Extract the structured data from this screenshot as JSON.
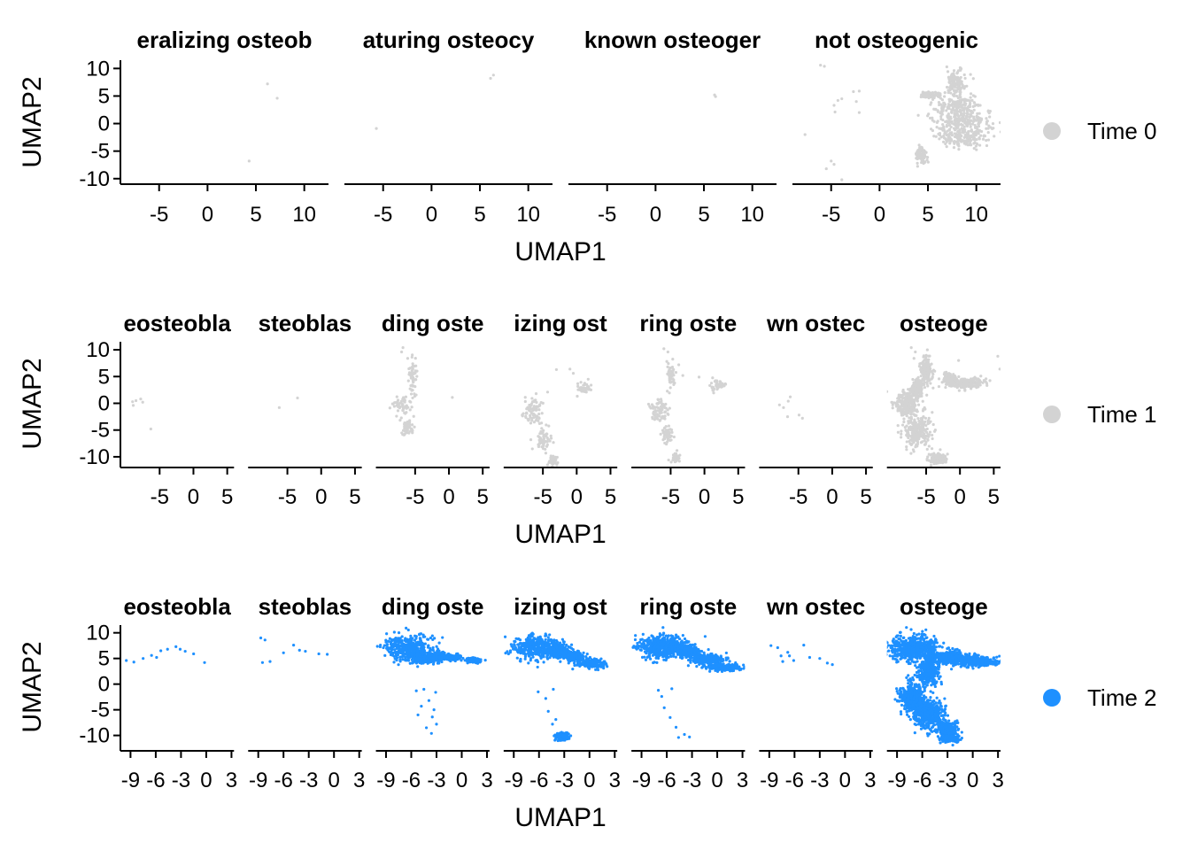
{
  "chart_data": [
    {
      "type": "scatter",
      "xlabel": "UMAP1",
      "ylabel": "UMAP2",
      "legend": {
        "label": "Time 0",
        "color": "#d3d3d3",
        "position": "right"
      },
      "xlim": [
        -9,
        12.5
      ],
      "ylim": [
        -11,
        11.5
      ],
      "xticks": [
        "-5",
        "0",
        "5",
        "10"
      ],
      "xtick_values": [
        -5,
        0,
        5,
        10
      ],
      "yticks": [
        "10",
        "5",
        "0",
        "-5",
        "-10"
      ],
      "ytick_values": [
        10,
        5,
        0,
        -5,
        -10
      ],
      "panels": [
        {
          "title": "eralizing osteob",
          "points": [
            [
              6.2,
              7.2
            ],
            [
              7.2,
              4.6
            ],
            [
              4.3,
              -6.8
            ]
          ]
        },
        {
          "title": "aturing osteocy",
          "points": [
            [
              -5.7,
              -0.9
            ],
            [
              6.1,
              8.2
            ],
            [
              6.4,
              8.8
            ]
          ]
        },
        {
          "title": "known osteoger",
          "points": [
            [
              6.1,
              5.2
            ],
            [
              6.2,
              4.9
            ]
          ]
        },
        {
          "title": "not osteogenic",
          "points": [
            [
              -6.1,
              10.6
            ],
            [
              -5.7,
              10.4
            ],
            [
              -7.7,
              -2.0
            ],
            [
              -2.7,
              5.8
            ],
            [
              -2.1,
              5.9
            ],
            [
              -2.4,
              4.0
            ],
            [
              -3.9,
              4.5
            ],
            [
              -4.7,
              3.3
            ],
            [
              -4.6,
              2.1
            ],
            [
              -4.3,
              4.2
            ],
            [
              -2.1,
              2.0
            ],
            [
              -4.7,
              -7.4
            ],
            [
              -5.0,
              -6.8
            ],
            [
              -5.5,
              -8.2
            ],
            [
              -3.9,
              -10.2
            ],
            [
              4.6,
              5.2
            ],
            [
              5.5,
              4.8
            ],
            [
              4.2,
              -5.5
            ],
            [
              4.0,
              1.5
            ]
          ]
        }
      ],
      "clusters": {
        "panel": 3,
        "blobs": [
          [
            7.9,
            7.5,
            1.0,
            2.4
          ],
          [
            8.0,
            3.2,
            2.0,
            1.6
          ],
          [
            8.6,
            0.2,
            2.9,
            2.6
          ],
          [
            8.6,
            -2.8,
            2.2,
            1.4
          ],
          [
            5.2,
            5.2,
            0.9,
            0.5
          ],
          [
            4.3,
            -5.6,
            0.5,
            1.3
          ]
        ],
        "count": 700
      }
    },
    {
      "type": "scatter",
      "xlabel": "UMAP1",
      "ylabel": "UMAP2",
      "legend": {
        "label": "Time 1",
        "color": "#d3d3d3",
        "position": "right"
      },
      "xlim": [
        -10.8,
        6
      ],
      "ylim": [
        -12,
        11.5
      ],
      "xticks": [
        "-5",
        "0",
        "5"
      ],
      "xtick_values": [
        -5,
        0,
        5
      ],
      "yticks": [
        "10",
        "5",
        "0",
        "-5",
        "-10"
      ],
      "ytick_values": [
        10,
        5,
        0,
        -5,
        -10
      ],
      "panels": [
        {
          "title": "eosteobla",
          "points": [
            [
              -9.0,
              0.3
            ],
            [
              -8.5,
              0.5
            ],
            [
              -7.8,
              0.8
            ],
            [
              -7.5,
              0.2
            ],
            [
              -8.9,
              -0.4
            ],
            [
              -6.3,
              -4.8
            ]
          ]
        },
        {
          "title": "steoblas",
          "points": [
            [
              -6.2,
              -0.8
            ],
            [
              -3.5,
              1.0
            ]
          ]
        },
        {
          "title": "ding oste",
          "points": [
            [
              -7.0,
              9.6
            ],
            [
              -6.8,
              10.4
            ],
            [
              -6.1,
              8.4
            ],
            [
              -5.2,
              5.5
            ],
            [
              -5.5,
              2.4
            ],
            [
              0.5,
              1.1
            ]
          ]
        },
        {
          "title": "izing ost",
          "points": [
            [
              -3.0,
              6.3
            ],
            [
              -1.0,
              6.4
            ],
            [
              -0.5,
              5.6
            ],
            [
              1.7,
              4.5
            ],
            [
              -6.0,
              1.8
            ],
            [
              -4.3,
              2.1
            ]
          ]
        },
        {
          "title": "ring oste",
          "points": [
            [
              -6.0,
              10.2
            ],
            [
              -5.4,
              9.6
            ],
            [
              -3.8,
              7.2
            ],
            [
              -3.2,
              5.2
            ],
            [
              -0.8,
              4.9
            ],
            [
              -5.3,
              -10.6
            ]
          ]
        },
        {
          "title": "wn ostec",
          "points": [
            [
              -7.8,
              -0.3
            ],
            [
              -6.2,
              1.2
            ],
            [
              -6.6,
              -2.5
            ],
            [
              -4.9,
              -2.2
            ],
            [
              -4.4,
              -2.8
            ],
            [
              -7.2,
              -0.8
            ],
            [
              -6.5,
              0.4
            ]
          ]
        },
        {
          "title": "osteoge",
          "points": [
            [
              -7.2,
              10.4
            ],
            [
              -6.6,
              9.6
            ],
            [
              -6.8,
              8.4
            ],
            [
              5.6,
              8.8
            ],
            [
              5.9,
              6.4
            ],
            [
              -0.2,
              8.0
            ]
          ]
        }
      ],
      "clusters": [
        {
          "panel": 2,
          "blobs": [
            [
              -7.0,
              -0.6,
              1.2,
              1.8
            ],
            [
              -5.4,
              5.0,
              0.6,
              3.2
            ],
            [
              -6.3,
              -4.5,
              0.9,
              1.4
            ]
          ],
          "count": 150
        },
        {
          "panel": 3,
          "blobs": [
            [
              -6.5,
              -1.6,
              1.2,
              2.1
            ],
            [
              -4.9,
              -6.5,
              1.0,
              2.2
            ],
            [
              -3.5,
              -10.7,
              0.6,
              0.8
            ],
            [
              1.0,
              2.8,
              0.9,
              0.8
            ]
          ],
          "count": 250
        },
        {
          "panel": 4,
          "blobs": [
            [
              -6.6,
              -1.2,
              1.5,
              2.0
            ],
            [
              -5.0,
              4.7,
              0.6,
              2.3
            ],
            [
              -5.5,
              -5.7,
              0.8,
              1.4
            ],
            [
              2.0,
              3.3,
              1.0,
              0.9
            ],
            [
              -4.2,
              -10.3,
              0.5,
              0.8
            ]
          ],
          "count": 320
        },
        {
          "panel": 6,
          "blobs": [
            [
              -7.8,
              -0.1,
              1.6,
              2.3
            ],
            [
              -6.2,
              -5.1,
              1.8,
              2.7
            ],
            [
              -3.3,
              -10.4,
              1.2,
              0.9
            ],
            [
              -6.3,
              2.8,
              0.8,
              1.4
            ],
            [
              -5.0,
              6.2,
              0.8,
              2.4
            ],
            [
              1.0,
              3.8,
              2.4,
              0.9
            ],
            [
              -1.6,
              4.4,
              0.9,
              1.0
            ]
          ],
          "count": 1200
        }
      ]
    },
    {
      "type": "scatter",
      "xlabel": "UMAP1",
      "ylabel": "UMAP2",
      "legend": {
        "label": "Time 2",
        "color": "#1e90ff",
        "position": "right"
      },
      "xlim": [
        -10.2,
        3.3
      ],
      "ylim": [
        -13,
        11.5
      ],
      "xticks": [
        "-9",
        "-6",
        "-3",
        "0",
        "3"
      ],
      "xtick_values": [
        -9,
        -6,
        -3,
        0,
        3
      ],
      "yticks": [
        "10",
        "5",
        "0",
        "-5",
        "-10"
      ],
      "ytick_values": [
        10,
        5,
        0,
        -5,
        -10
      ],
      "panels": [
        {
          "title": "eosteobla",
          "points": [
            [
              -9.5,
              4.6
            ],
            [
              -8.6,
              4.3
            ],
            [
              -7.5,
              5.0
            ],
            [
              -6.5,
              5.6
            ],
            [
              -5.4,
              6.5
            ],
            [
              -4.6,
              6.8
            ],
            [
              -3.6,
              7.3
            ],
            [
              -2.5,
              6.4
            ],
            [
              -1.5,
              5.9
            ],
            [
              -0.2,
              4.2
            ],
            [
              -3.1,
              6.8
            ],
            [
              -5.9,
              5.2
            ]
          ]
        },
        {
          "title": "steoblas",
          "points": [
            [
              -8.7,
              9.0
            ],
            [
              -8.2,
              8.6
            ],
            [
              -8.5,
              4.2
            ],
            [
              -7.6,
              4.4
            ],
            [
              -6.0,
              6.1
            ],
            [
              -4.8,
              7.6
            ],
            [
              -3.4,
              6.4
            ],
            [
              -1.8,
              5.9
            ],
            [
              -0.8,
              5.8
            ],
            [
              -4.1,
              6.6
            ]
          ]
        },
        {
          "title": "ding oste",
          "points": [
            [
              -5.4,
              -1.3
            ],
            [
              -4.5,
              -1.0
            ],
            [
              -3.9,
              -3.2
            ],
            [
              -3.1,
              -1.6
            ],
            [
              -3.5,
              -6.4
            ],
            [
              -3.0,
              -7.8
            ],
            [
              -4.2,
              -8.5
            ],
            [
              -3.6,
              -9.6
            ],
            [
              -5.2,
              -6.0
            ],
            [
              -4.8,
              -4.3
            ],
            [
              -3.3,
              -5.0
            ]
          ]
        },
        {
          "title": "izing ost",
          "points": [
            [
              -6.1,
              -1.5
            ],
            [
              -5.2,
              -2.8
            ],
            [
              -4.3,
              -1.0
            ],
            [
              -4.9,
              -5.3
            ],
            [
              -4.0,
              -6.9
            ],
            [
              -4.4,
              -7.8
            ]
          ]
        },
        {
          "title": "ring oste",
          "points": [
            [
              -7.0,
              -1.2
            ],
            [
              -6.6,
              -2.4
            ],
            [
              -5.4,
              -0.9
            ],
            [
              -6.3,
              -4.6
            ],
            [
              -5.6,
              -6.5
            ],
            [
              -4.9,
              -8.4
            ],
            [
              -3.9,
              -9.8
            ],
            [
              -3.3,
              -10.3
            ],
            [
              -4.6,
              -10.4
            ]
          ]
        },
        {
          "title": "wn ostec",
          "points": [
            [
              -8.8,
              7.5
            ],
            [
              -8.0,
              7.1
            ],
            [
              -7.6,
              5.5
            ],
            [
              -6.8,
              6.2
            ],
            [
              -6.1,
              4.6
            ],
            [
              -4.9,
              7.6
            ],
            [
              -4.2,
              5.2
            ],
            [
              -3.0,
              5.0
            ],
            [
              -2.1,
              4.1
            ],
            [
              -1.5,
              3.8
            ],
            [
              -7.4,
              4.4
            ],
            [
              -6.6,
              5.5
            ]
          ]
        },
        {
          "title": "osteoge",
          "points": [
            [
              2.8,
              3.8
            ],
            [
              1.4,
              3.6
            ]
          ]
        }
      ],
      "clusters": [
        {
          "panel": 2,
          "blobs": [
            [
              -6.4,
              7.1,
              2.5,
              2.2
            ],
            [
              -4.6,
              5.1,
              1.3,
              1.0
            ],
            [
              -2.8,
              5.4,
              0.8,
              0.8
            ],
            [
              -1.2,
              5.2,
              0.9,
              0.5
            ],
            [
              1.4,
              4.6,
              0.8,
              0.4
            ]
          ],
          "count": 1200
        },
        {
          "panel": 3,
          "blobs": [
            [
              -6.3,
              7.2,
              2.3,
              2.0
            ],
            [
              -3.8,
              6.5,
              1.2,
              1.2
            ],
            [
              -2.0,
              5.5,
              1.1,
              0.8
            ],
            [
              0.2,
              4.0,
              1.5,
              0.8
            ],
            [
              -3.2,
              -10.2,
              0.7,
              0.6
            ]
          ],
          "count": 1200
        },
        {
          "panel": 4,
          "blobs": [
            [
              -6.5,
              7.3,
              2.6,
              2.0
            ],
            [
              -3.6,
              6.3,
              1.3,
              1.0
            ],
            [
              -1.2,
              4.8,
              1.8,
              0.9
            ],
            [
              0.8,
              3.3,
              1.8,
              0.6
            ]
          ],
          "count": 1200
        },
        {
          "panel": 6,
          "blobs": [
            [
              -6.8,
              7.0,
              2.6,
              2.2
            ],
            [
              -3.0,
              5.2,
              2.2,
              1.1
            ],
            [
              0.2,
              4.4,
              2.3,
              0.9
            ],
            [
              -7.2,
              -2.5,
              1.4,
              2.4
            ],
            [
              -5.2,
              -5.8,
              1.6,
              2.4
            ],
            [
              -3.0,
              -8.8,
              1.2,
              1.4
            ],
            [
              -2.7,
              -10.6,
              0.9,
              0.6
            ],
            [
              -5.3,
              2.4,
              1.1,
              2.0
            ]
          ],
          "count": 2500
        }
      ]
    }
  ]
}
